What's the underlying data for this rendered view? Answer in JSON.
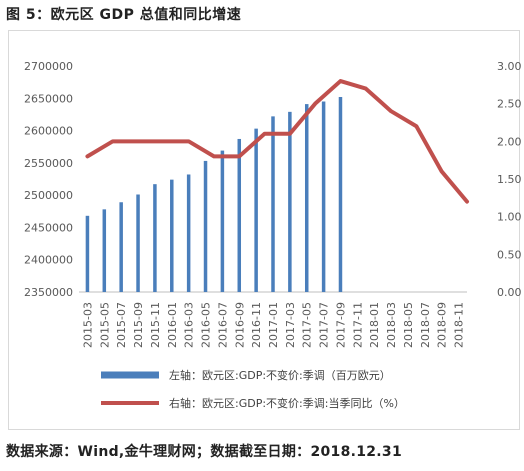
{
  "figure_title": "图 5：欧元区 GDP 总值和同比增速",
  "source_note": "数据来源：Wind,金牛理财网；数据截至日期：2018.12.31",
  "chart_data": {
    "type": "bar",
    "categories": [
      "2015-03",
      "2015-05",
      "2015-07",
      "2015-09",
      "2015-11",
      "2016-01",
      "2016-03",
      "2016-05",
      "2016-07",
      "2016-09",
      "2016-11",
      "2017-01",
      "2017-03",
      "2017-05",
      "2017-07",
      "2017-09",
      "2017-11",
      "2018-01",
      "2018-03",
      "2018-05",
      "2018-07",
      "2018-09",
      "2018-11"
    ],
    "left_axis": {
      "ylim": [
        2350000,
        2700000
      ],
      "ticks": [
        2350000,
        2400000,
        2450000,
        2500000,
        2550000,
        2600000,
        2650000,
        2700000
      ],
      "tick_labels": [
        "2350000",
        "2400000",
        "2450000",
        "2500000",
        "2550000",
        "2600000",
        "2650000",
        "2700000"
      ]
    },
    "right_axis": {
      "ylim": [
        0,
        3
      ],
      "ticks": [
        0,
        0.5,
        1,
        1.5,
        2,
        2.5,
        3
      ],
      "tick_labels": [
        "0.00",
        "0.50",
        "1.00",
        "1.50",
        "2.00",
        "2.50",
        "3.00"
      ]
    },
    "series": [
      {
        "name": "左轴：欧元区:GDP:不变价:季调（百万欧元）",
        "type": "bar",
        "axis": "left",
        "color": "#4a7ebb",
        "points": [
          {
            "x": 0,
            "y": 2468000
          },
          {
            "x": 1,
            "y": 2478000
          },
          {
            "x": 2,
            "y": 2489000
          },
          {
            "x": 3,
            "y": 2501000
          },
          {
            "x": 4,
            "y": 2517000
          },
          {
            "x": 5,
            "y": 2524000
          },
          {
            "x": 6,
            "y": 2532000
          },
          {
            "x": 7,
            "y": 2553000
          },
          {
            "x": 8,
            "y": 2569000
          },
          {
            "x": 9,
            "y": 2587000
          },
          {
            "x": 10,
            "y": 2603000
          },
          {
            "x": 11,
            "y": 2622000
          },
          {
            "x": 12,
            "y": 2629000
          },
          {
            "x": 13,
            "y": 2641000
          },
          {
            "x": 14,
            "y": 2645000
          },
          {
            "x": 15,
            "y": 2652000
          }
        ]
      },
      {
        "name": "右轴：欧元区:GDP:不变价:季调:当季同比（%）",
        "type": "line",
        "axis": "right",
        "color": "#c0504d",
        "points": [
          {
            "x": 0,
            "y": 1.8
          },
          {
            "x": 1.5,
            "y": 2.0
          },
          {
            "x": 3,
            "y": 2.0
          },
          {
            "x": 4.5,
            "y": 2.0
          },
          {
            "x": 6,
            "y": 2.0
          },
          {
            "x": 7.5,
            "y": 1.8
          },
          {
            "x": 9,
            "y": 1.8
          },
          {
            "x": 10.5,
            "y": 2.1
          },
          {
            "x": 12,
            "y": 2.1
          },
          {
            "x": 13.5,
            "y": 2.5
          },
          {
            "x": 15,
            "y": 2.8
          },
          {
            "x": 16.5,
            "y": 2.7
          },
          {
            "x": 18,
            "y": 2.4
          },
          {
            "x": 19.5,
            "y": 2.2
          },
          {
            "x": 21,
            "y": 1.6
          },
          {
            "x": 22.5,
            "y": 1.2
          }
        ]
      }
    ],
    "grid": false,
    "legend_position": "bottom"
  }
}
